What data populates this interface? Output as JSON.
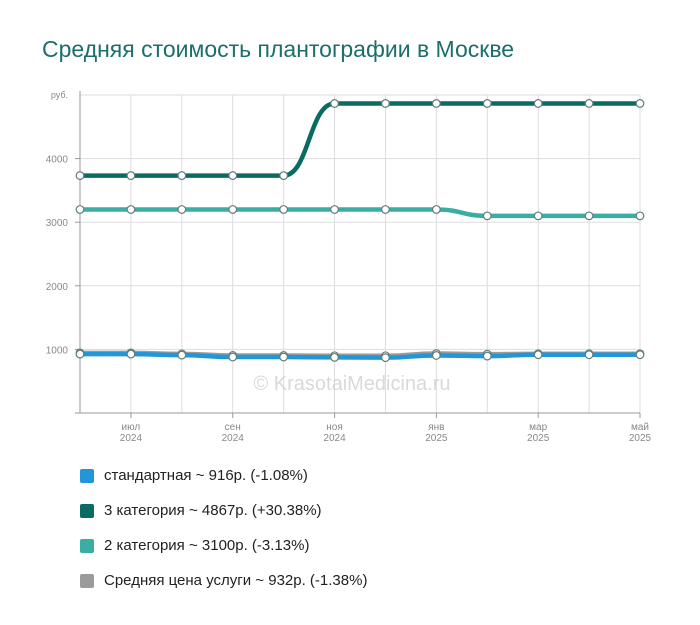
{
  "title": "Средняя стоимость плантографии в Москве",
  "watermark": "© KrasotaiMedicina.ru",
  "legend": [
    {
      "label": "стандартная ~ 916р. (-1.08%)",
      "color": "#2196d8"
    },
    {
      "label": "3 категория ~ 4867р. (+30.38%)",
      "color": "#0a6b63"
    },
    {
      "label": "2 категория ~ 3100р. (-3.13%)",
      "color": "#3aaea2"
    },
    {
      "label": "Средняя цена услуги ~ 932р. (-1.38%)",
      "color": "#9b9b9b"
    }
  ],
  "chart_data": {
    "type": "line",
    "y_unit_label": "руб.",
    "ylim": [
      0,
      5000
    ],
    "y_ticks": [
      1000,
      2000,
      3000,
      4000
    ],
    "grid": true,
    "x_tick_labels": [
      {
        "month": "июл",
        "year": "2024",
        "index": 1
      },
      {
        "month": "сен",
        "year": "2024",
        "index": 3
      },
      {
        "month": "ноя",
        "year": "2024",
        "index": 5
      },
      {
        "month": "янв",
        "year": "2025",
        "index": 7
      },
      {
        "month": "мар",
        "year": "2025",
        "index": 9
      },
      {
        "month": "май",
        "year": "2025",
        "index": 11
      }
    ],
    "x": [
      "2024-06",
      "2024-07",
      "2024-08",
      "2024-09",
      "2024-10",
      "2024-11",
      "2024-12",
      "2025-01",
      "2025-02",
      "2025-03",
      "2025-04",
      "2025-05"
    ],
    "series": [
      {
        "name": "Средняя цена услуги",
        "color": "#9b9b9b",
        "values": [
          945,
          945,
          930,
          905,
          905,
          900,
          900,
          935,
          925,
          932,
          932,
          932
        ]
      },
      {
        "name": "стандартная",
        "color": "#2196d8",
        "values": [
          926,
          926,
          910,
          880,
          880,
          875,
          870,
          905,
          895,
          916,
          916,
          916
        ]
      },
      {
        "name": "2 категория",
        "color": "#3aaea2",
        "values": [
          3200,
          3200,
          3200,
          3200,
          3200,
          3200,
          3200,
          3200,
          3100,
          3100,
          3100,
          3100
        ]
      },
      {
        "name": "3 категория",
        "color": "#0a6b63",
        "values": [
          3733,
          3733,
          3733,
          3733,
          3733,
          4867,
          4867,
          4867,
          4867,
          4867,
          4867,
          4867
        ]
      }
    ]
  }
}
